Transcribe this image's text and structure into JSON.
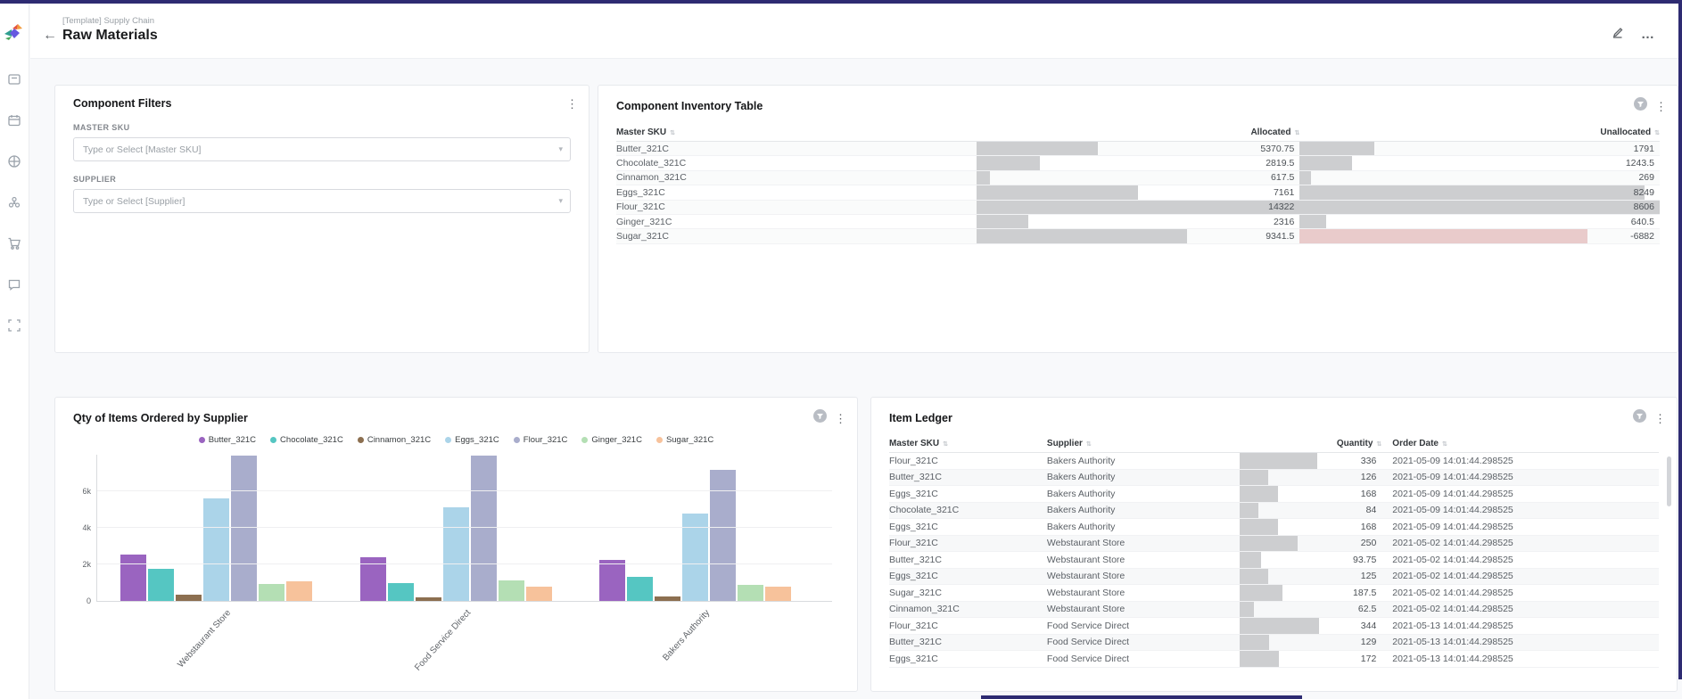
{
  "header": {
    "breadcrumb": "[Template] Supply Chain",
    "title": "Raw Materials"
  },
  "sidebar": {
    "icons": [
      "archive-box",
      "calendar",
      "globe",
      "cluster",
      "cart",
      "comment",
      "expand"
    ]
  },
  "filters": {
    "title": "Component Filters",
    "fields": [
      {
        "label": "MASTER SKU",
        "placeholder": "Type or Select [Master SKU]"
      },
      {
        "label": "SUPPLIER",
        "placeholder": "Type or Select [Supplier]"
      }
    ]
  },
  "inventory": {
    "title": "Component Inventory Table",
    "columns": [
      "Master SKU",
      "Allocated",
      "Unallocated"
    ],
    "allocated_max": 14322,
    "unallocated_max": 8606,
    "bar_color": "#cdced0",
    "negative_bar_color": "#e9cbcb",
    "rows": [
      {
        "sku": "Butter_321C",
        "allocated": 5370.75,
        "unallocated": 1791
      },
      {
        "sku": "Chocolate_321C",
        "allocated": 2819.5,
        "unallocated": 1243.5
      },
      {
        "sku": "Cinnamon_321C",
        "allocated": 617.5,
        "unallocated": 269
      },
      {
        "sku": "Eggs_321C",
        "allocated": 7161,
        "unallocated": 8249
      },
      {
        "sku": "Flour_321C",
        "allocated": 14322,
        "unallocated": 8606
      },
      {
        "sku": "Ginger_321C",
        "allocated": 2316,
        "unallocated": 640.5
      },
      {
        "sku": "Sugar_321C",
        "allocated": 9341.5,
        "unallocated": -6882
      }
    ]
  },
  "chart": {
    "title": "Qty of Items Ordered by Supplier",
    "chart_data": {
      "type": "bar",
      "categories": [
        "Webstaurant Store",
        "Food Service Direct",
        "Bakers Authority"
      ],
      "series": [
        {
          "name": "Butter_321C",
          "color": "#9a64c0",
          "values": [
            2550,
            2400,
            2250
          ]
        },
        {
          "name": "Chocolate_321C",
          "color": "#55c6c2",
          "values": [
            1750,
            1000,
            1300
          ]
        },
        {
          "name": "Cinnamon_321C",
          "color": "#8c6f50",
          "values": [
            330,
            210,
            240
          ]
        },
        {
          "name": "Eggs_321C",
          "color": "#abd4e9",
          "values": [
            5600,
            5100,
            4800
          ]
        },
        {
          "name": "Flour_321C",
          "color": "#a9adcc",
          "values": [
            7950,
            7950,
            7150
          ]
        },
        {
          "name": "Ginger_321C",
          "color": "#b4dfb4",
          "values": [
            950,
            1100,
            860
          ]
        },
        {
          "name": "Sugar_321C",
          "color": "#f7c29b",
          "values": [
            1080,
            760,
            780
          ]
        }
      ],
      "ylim": [
        0,
        8000
      ],
      "yticks": [
        [
          "6k",
          6000
        ],
        [
          "4k",
          4000
        ],
        [
          "2k",
          2000
        ],
        [
          "0",
          0
        ]
      ],
      "grid": true,
      "legend_position": "top",
      "xlabel": "",
      "ylabel": ""
    }
  },
  "ledger": {
    "title": "Item Ledger",
    "columns": [
      "Master SKU",
      "Supplier",
      "Quantity",
      "Order Date"
    ],
    "quantity_max": 344,
    "rows": [
      {
        "sku": "Flour_321C",
        "supplier": "Bakers Authority",
        "quantity": 336,
        "order_date": "2021-05-09 14:01:44.298525"
      },
      {
        "sku": "Butter_321C",
        "supplier": "Bakers Authority",
        "quantity": 126,
        "order_date": "2021-05-09 14:01:44.298525"
      },
      {
        "sku": "Eggs_321C",
        "supplier": "Bakers Authority",
        "quantity": 168,
        "order_date": "2021-05-09 14:01:44.298525"
      },
      {
        "sku": "Chocolate_321C",
        "supplier": "Bakers Authority",
        "quantity": 84,
        "order_date": "2021-05-09 14:01:44.298525"
      },
      {
        "sku": "Eggs_321C",
        "supplier": "Bakers Authority",
        "quantity": 168,
        "order_date": "2021-05-09 14:01:44.298525"
      },
      {
        "sku": "Flour_321C",
        "supplier": "Webstaurant Store",
        "quantity": 250,
        "order_date": "2021-05-02 14:01:44.298525"
      },
      {
        "sku": "Butter_321C",
        "supplier": "Webstaurant Store",
        "quantity": 93.75,
        "order_date": "2021-05-02 14:01:44.298525"
      },
      {
        "sku": "Eggs_321C",
        "supplier": "Webstaurant Store",
        "quantity": 125,
        "order_date": "2021-05-02 14:01:44.298525"
      },
      {
        "sku": "Sugar_321C",
        "supplier": "Webstaurant Store",
        "quantity": 187.5,
        "order_date": "2021-05-02 14:01:44.298525"
      },
      {
        "sku": "Cinnamon_321C",
        "supplier": "Webstaurant Store",
        "quantity": 62.5,
        "order_date": "2021-05-02 14:01:44.298525"
      },
      {
        "sku": "Flour_321C",
        "supplier": "Food Service Direct",
        "quantity": 344,
        "order_date": "2021-05-13 14:01:44.298525"
      },
      {
        "sku": "Butter_321C",
        "supplier": "Food Service Direct",
        "quantity": 129,
        "order_date": "2021-05-13 14:01:44.298525"
      },
      {
        "sku": "Eggs_321C",
        "supplier": "Food Service Direct",
        "quantity": 172,
        "order_date": "2021-05-13 14:01:44.298525"
      }
    ]
  }
}
